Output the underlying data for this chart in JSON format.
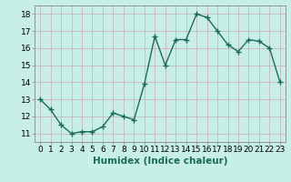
{
  "x": [
    0,
    1,
    2,
    3,
    4,
    5,
    6,
    7,
    8,
    9,
    10,
    11,
    12,
    13,
    14,
    15,
    16,
    17,
    18,
    19,
    20,
    21,
    22,
    23
  ],
  "y": [
    13.0,
    12.4,
    11.5,
    11.0,
    11.1,
    11.1,
    11.4,
    12.2,
    12.0,
    11.8,
    13.9,
    16.7,
    15.0,
    16.5,
    16.5,
    18.0,
    17.8,
    17.0,
    16.2,
    15.8,
    16.5,
    16.4,
    16.0,
    14.0
  ],
  "line_color": "#1a6b5a",
  "marker": "D",
  "marker_size": 2.0,
  "bg_color": "#c8eee8",
  "grid_color": "#c8b8b8",
  "xlabel": "Humidex (Indice chaleur)",
  "ylim": [
    10.5,
    18.5
  ],
  "xlim": [
    -0.5,
    23.5
  ],
  "yticks": [
    11,
    12,
    13,
    14,
    15,
    16,
    17,
    18
  ],
  "xticks": [
    0,
    1,
    2,
    3,
    4,
    5,
    6,
    7,
    8,
    9,
    10,
    11,
    12,
    13,
    14,
    15,
    16,
    17,
    18,
    19,
    20,
    21,
    22,
    23
  ],
  "tick_label_size": 6.5,
  "xlabel_size": 7.5,
  "line_width": 1.0,
  "spine_color": "#888888"
}
